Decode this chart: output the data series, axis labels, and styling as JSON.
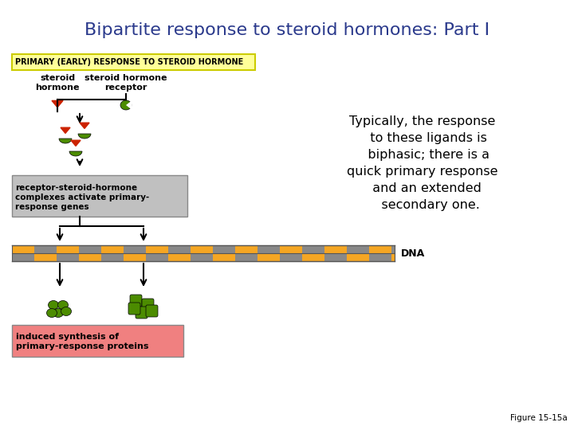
{
  "title": "Bipartite response to steroid hormones: Part I",
  "title_color": "#2B3A8C",
  "title_fontsize": 16,
  "bg_color": "#ffffff",
  "primary_label_text": "PRIMARY (EARLY) RESPONSE TO STEROID HORMONE",
  "primary_label_bg": "#FFFF99",
  "primary_label_border": "#CCCC00",
  "steroid_hormone_label": "steroid\nhormone",
  "steroid_receptor_label": "steroid hormone\nreceptor",
  "receptor_complex_label": "receptor-steroid-hormone\ncomplexes activate primary-\nresponse genes",
  "receptor_complex_bg": "#C0C0C0",
  "dna_label": "DNA",
  "induced_synthesis_label": "induced synthesis of\nprimary-response proteins",
  "induced_synthesis_bg": "#F08080",
  "typically_text": "Typically, the response\n   to these ligands is\n   biphasic; there is a\nquick primary response\n  and an extended\n    secondary one.",
  "figure_label": "Figure 15-15a",
  "dna_color_orange": "#F5A623",
  "dna_color_gray": "#888888",
  "green_color": "#4C8C00",
  "red_color": "#CC2200"
}
